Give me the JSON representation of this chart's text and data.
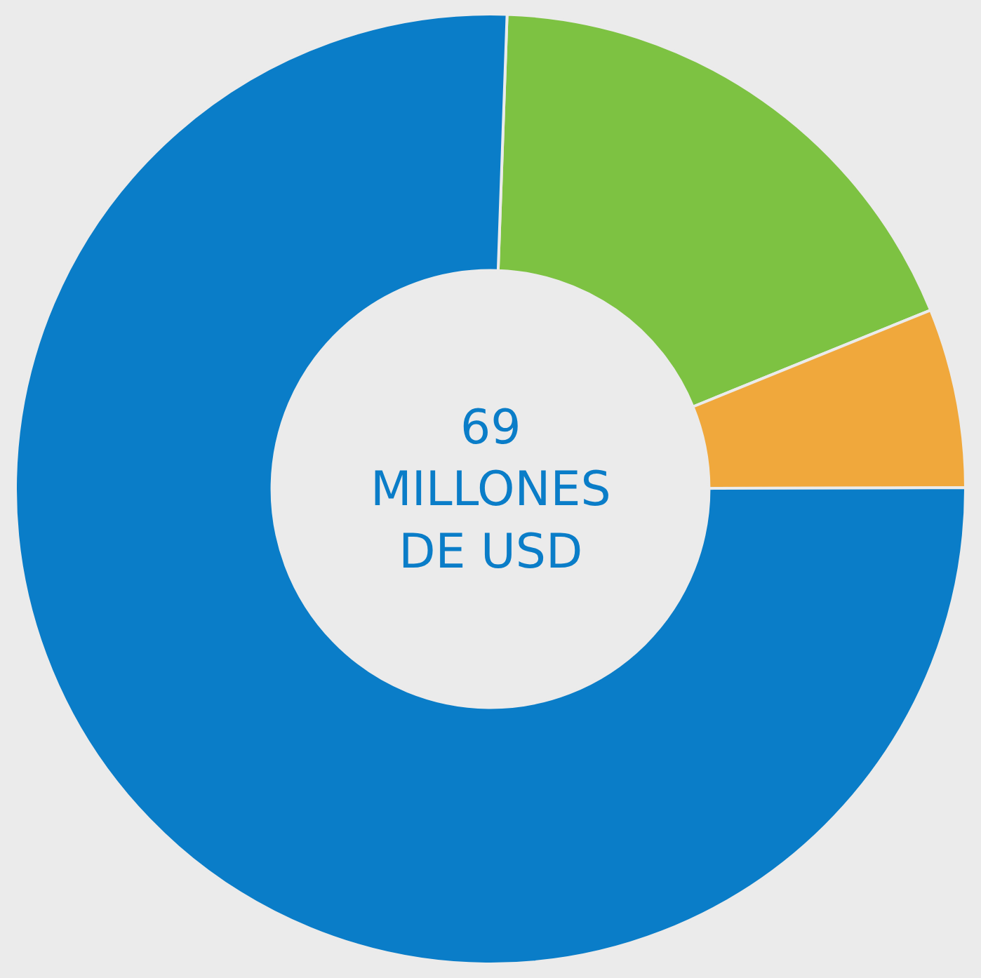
{
  "chart_data": {
    "type": "donut",
    "categories": [
      null,
      null,
      null
    ],
    "values": [
      18.3,
      6.1,
      75.6
    ],
    "colors": [
      "#7dc242",
      "#f0a83c",
      "#0a7dc8"
    ],
    "annotations": [
      "69\nMILLONES\nDE USD"
    ],
    "legend": false
  }
}
